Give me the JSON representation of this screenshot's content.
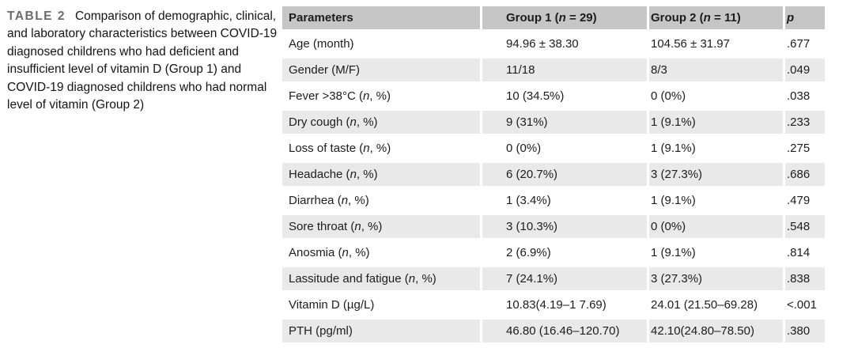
{
  "caption": {
    "label": "TABLE 2",
    "text": "Comparison of demographic, clinical, and laboratory characteristics between COVID-19 diagnosed childrens who had deficient and insufficient level of vitamin D (Group 1) and COVID-19 diagnosed childrens who had normal level of vitamin (Group 2)"
  },
  "colors": {
    "header_bg": "#c6c6c6",
    "row_alt_bg": "#e9e9e9",
    "caption_label": "#6b6b6b",
    "text": "#1c1c1c"
  },
  "table": {
    "columns": [
      {
        "pre": "Parameters",
        "italic": "",
        "post": ""
      },
      {
        "pre": "Group 1 (",
        "italic": "n",
        "post": " = 29)"
      },
      {
        "pre": "Group 2 (",
        "italic": "n",
        "post": " = 11)"
      },
      {
        "pre": "",
        "italic": "p",
        "post": ""
      }
    ],
    "rows": [
      {
        "param": {
          "pre": "Age (month)",
          "italic": "",
          "post": ""
        },
        "group1": "94.96 ± 38.30",
        "group2": "104.56 ± 31.97",
        "p": ".677",
        "shaded": false
      },
      {
        "param": {
          "pre": "Gender (M/F)",
          "italic": "",
          "post": ""
        },
        "group1": "11/18",
        "group2": "8/3",
        "p": ".049",
        "shaded": true
      },
      {
        "param": {
          "pre": "Fever >38°C (",
          "italic": "n",
          "post": ", %)"
        },
        "group1": "10 (34.5%)",
        "group2": "0 (0%)",
        "p": ".038",
        "shaded": false
      },
      {
        "param": {
          "pre": "Dry cough (",
          "italic": "n",
          "post": ", %)"
        },
        "group1": "9 (31%)",
        "group2": "1 (9.1%)",
        "p": ".233",
        "shaded": true
      },
      {
        "param": {
          "pre": "Loss of taste (",
          "italic": "n",
          "post": ", %)"
        },
        "group1": "0 (0%)",
        "group2": "1 (9.1%)",
        "p": ".275",
        "shaded": false
      },
      {
        "param": {
          "pre": "Headache (",
          "italic": "n",
          "post": ", %)"
        },
        "group1": "6 (20.7%)",
        "group2": "3 (27.3%)",
        "p": ".686",
        "shaded": true
      },
      {
        "param": {
          "pre": "Diarrhea (",
          "italic": "n",
          "post": ", %)"
        },
        "group1": "1 (3.4%)",
        "group2": "1 (9.1%)",
        "p": ".479",
        "shaded": false
      },
      {
        "param": {
          "pre": "Sore throat (",
          "italic": "n",
          "post": ", %)"
        },
        "group1": "3 (10.3%)",
        "group2": "0 (0%)",
        "p": ".548",
        "shaded": true
      },
      {
        "param": {
          "pre": "Anosmia (",
          "italic": "n",
          "post": ", %)"
        },
        "group1": "2 (6.9%)",
        "group2": "1 (9.1%)",
        "p": ".814",
        "shaded": false
      },
      {
        "param": {
          "pre": "Lassitude and fatigue (",
          "italic": "n",
          "post": ", %)"
        },
        "group1": "7 (24.1%)",
        "group2": "3 (27.3%)",
        "p": ".838",
        "shaded": true
      },
      {
        "param": {
          "pre": "Vitamin D (µg/L)",
          "italic": "",
          "post": ""
        },
        "group1": "10.83(4.19–1 7.69)",
        "group2": "24.01 (21.50–69.28)",
        "p": "<.001",
        "shaded": false
      },
      {
        "param": {
          "pre": "PTH (pg/ml)",
          "italic": "",
          "post": ""
        },
        "group1": "46.80 (16.46–120.70)",
        "group2": "42.10(24.80–78.50)",
        "p": ".380",
        "shaded": true
      }
    ]
  }
}
